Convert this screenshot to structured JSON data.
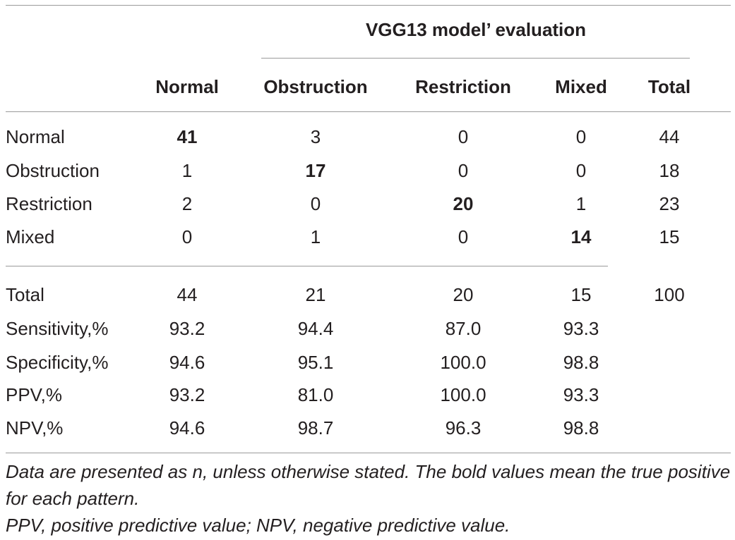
{
  "table": {
    "group_header": "VGG13 model’ evaluation",
    "columns": [
      "Normal",
      "Obstruction",
      "Restriction",
      "Mixed",
      "Total"
    ],
    "rows": [
      {
        "label": "Normal",
        "cells": [
          "41",
          "3",
          "0",
          "0",
          "44"
        ],
        "bold_index": 0
      },
      {
        "label": "Obstruction",
        "cells": [
          "1",
          "17",
          "0",
          "0",
          "18"
        ],
        "bold_index": 1
      },
      {
        "label": "Restriction",
        "cells": [
          "2",
          "0",
          "20",
          "1",
          "23"
        ],
        "bold_index": 2
      },
      {
        "label": "Mixed",
        "cells": [
          "0",
          "1",
          "0",
          "14",
          "15"
        ],
        "bold_index": 3
      }
    ],
    "summary_rows": [
      {
        "label": "Total",
        "cells": [
          "44",
          "21",
          "20",
          "15",
          "100"
        ]
      },
      {
        "label": "Sensitivity,%",
        "cells": [
          "93.2",
          "94.4",
          "87.0",
          "93.3",
          ""
        ]
      },
      {
        "label": "Specificity,%",
        "cells": [
          "94.6",
          "95.1",
          "100.0",
          "98.8",
          ""
        ]
      },
      {
        "label": "PPV,%",
        "cells": [
          "93.2",
          "81.0",
          "100.0",
          "93.3",
          ""
        ]
      },
      {
        "label": "NPV,%",
        "cells": [
          "94.6",
          "98.7",
          "96.3",
          "98.8",
          ""
        ]
      }
    ]
  },
  "footnotes": {
    "line1": "Data are presented as n, unless otherwise stated. The bold values mean the true positive for each pattern.",
    "line2": "PPV, positive predictive value; NPV, negative predictive value."
  }
}
